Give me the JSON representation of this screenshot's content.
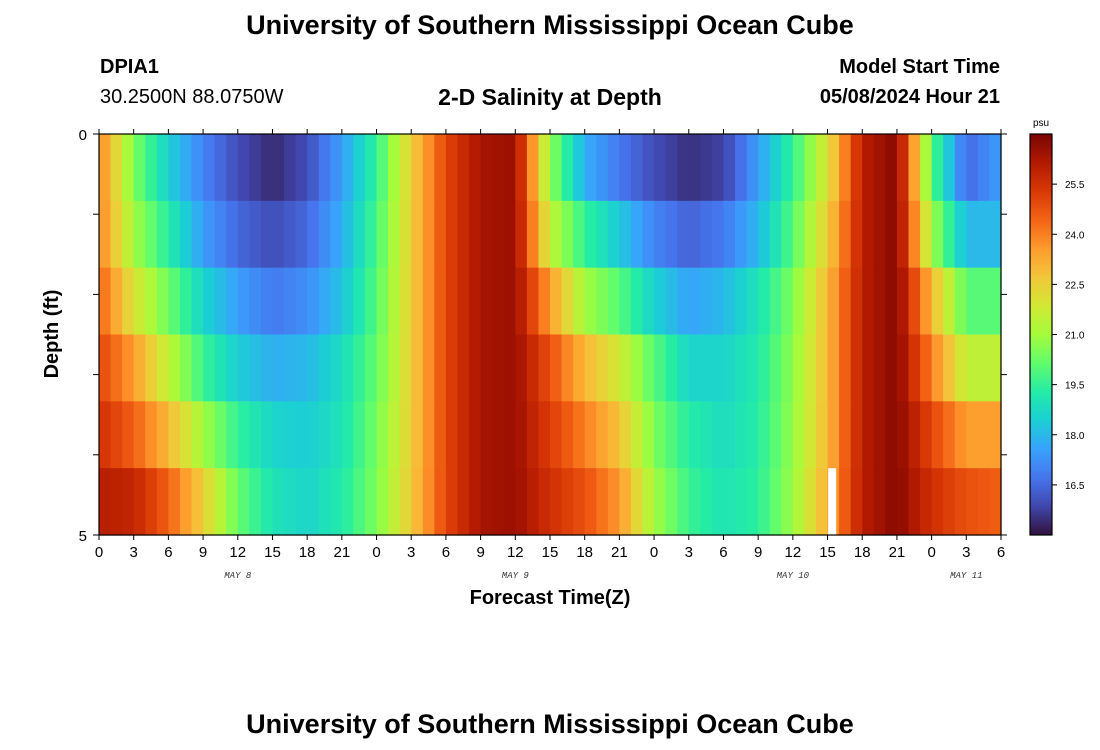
{
  "page": {
    "title_top": "University of Southern Mississippi Ocean Cube",
    "title_bottom": "University of Southern Mississippi Ocean Cube",
    "station": "DPIA1",
    "coords": "30.2500N  88.0750W",
    "plot_title": "2-D Salinity at Depth",
    "model_start_label": "Model Start Time",
    "model_start_value": "05/08/2024 Hour 21"
  },
  "colorbar": {
    "unit": "psu",
    "ticks": [
      "16.5",
      "18.0",
      "19.5",
      "21.0",
      "22.5",
      "24.0",
      "25.5"
    ],
    "colors": [
      "#30123b",
      "#4145ab",
      "#4675ed",
      "#39a2fc",
      "#1bcfd4",
      "#24eca6",
      "#61fc6c",
      "#a4fc3b",
      "#d1e834",
      "#f3c63a",
      "#fe9b2d",
      "#f36315",
      "#d93806",
      "#b11901",
      "#7a0402"
    ]
  },
  "chart_data": {
    "type": "heatmap",
    "title": "2-D Salinity at Depth",
    "xlabel": "Forecast Time(Z)",
    "ylabel": "Depth (ft)",
    "x_tick_labels": [
      "0",
      "3",
      "6",
      "9",
      "12",
      "15",
      "18",
      "21",
      "0",
      "3",
      "6",
      "9",
      "12",
      "15",
      "18",
      "21",
      "0",
      "3",
      "6",
      "9",
      "12",
      "15",
      "18",
      "21",
      "0",
      "3",
      "6"
    ],
    "day_labels": [
      "MAY 8",
      "MAY 9",
      "MAY 10",
      "MAY 11"
    ],
    "y_tick_labels": [
      "0",
      "5"
    ],
    "ylim": [
      0,
      5
    ],
    "x_range_hours": [
      0,
      78
    ],
    "clim": [
      15.0,
      27.0
    ],
    "series_note": "Salinity by depth layer at 3-hour steps from 0Z May 8 to 6Z May 11",
    "depth_layers": [
      0,
      1,
      2,
      3,
      4,
      5
    ],
    "x_hours": [
      0,
      3,
      6,
      9,
      12,
      15,
      18,
      21,
      24,
      27,
      30,
      33,
      36,
      39,
      42,
      45,
      48,
      51,
      54,
      57,
      60,
      63,
      66,
      69,
      72,
      75,
      78
    ],
    "values": [
      [
        24.0,
        20.5,
        18.5,
        17.0,
        16.0,
        15.4,
        16.0,
        17.5,
        19.5,
        22.5,
        25.0,
        26.3,
        26.5,
        20.8,
        17.8,
        16.8,
        16.0,
        15.5,
        15.8,
        17.5,
        19.5,
        22.0,
        26.0,
        26.8,
        20.0,
        16.5,
        17.5
      ],
      [
        24.0,
        21.0,
        19.3,
        17.5,
        16.5,
        16.0,
        16.5,
        17.8,
        19.8,
        22.5,
        25.0,
        26.3,
        26.5,
        21.5,
        19.5,
        18.3,
        17.0,
        16.4,
        16.8,
        18.0,
        20.0,
        22.5,
        26.0,
        26.8,
        21.0,
        18.0,
        18.0
      ],
      [
        24.5,
        22.0,
        20.3,
        18.6,
        17.5,
        16.8,
        17.2,
        18.2,
        20.0,
        22.5,
        25.0,
        26.3,
        26.5,
        23.5,
        21.0,
        20.0,
        18.5,
        17.6,
        18.0,
        19.0,
        20.5,
        23.0,
        26.0,
        26.8,
        23.0,
        20.0,
        20.0
      ],
      [
        25.0,
        23.5,
        21.5,
        19.6,
        18.4,
        17.8,
        18.0,
        18.8,
        20.2,
        22.5,
        25.0,
        26.3,
        26.5,
        24.8,
        23.0,
        21.8,
        20.0,
        18.6,
        18.6,
        19.2,
        20.7,
        23.0,
        26.0,
        26.8,
        24.0,
        21.5,
        21.5
      ],
      [
        25.5,
        24.5,
        23.0,
        21.0,
        19.5,
        18.6,
        18.4,
        19.0,
        20.4,
        22.5,
        25.0,
        26.3,
        26.5,
        25.2,
        24.0,
        22.8,
        20.5,
        19.3,
        18.8,
        19.3,
        20.8,
        23.0,
        26.0,
        26.8,
        25.0,
        23.5,
        23.5
      ],
      [
        26.0,
        25.8,
        24.5,
        22.5,
        20.2,
        19.0,
        18.6,
        19.2,
        20.5,
        22.6,
        25.0,
        26.3,
        26.5,
        25.5,
        24.8,
        23.6,
        21.0,
        19.6,
        19.0,
        19.4,
        20.9,
        23.2,
        26.0,
        26.8,
        25.5,
        24.8,
        24.5
      ]
    ],
    "missing": [
      {
        "x_hour": 63.4,
        "depth_layer": 5
      }
    ]
  },
  "ylabel": "Depth (ft)",
  "xlabel": "Forecast Time(Z)"
}
